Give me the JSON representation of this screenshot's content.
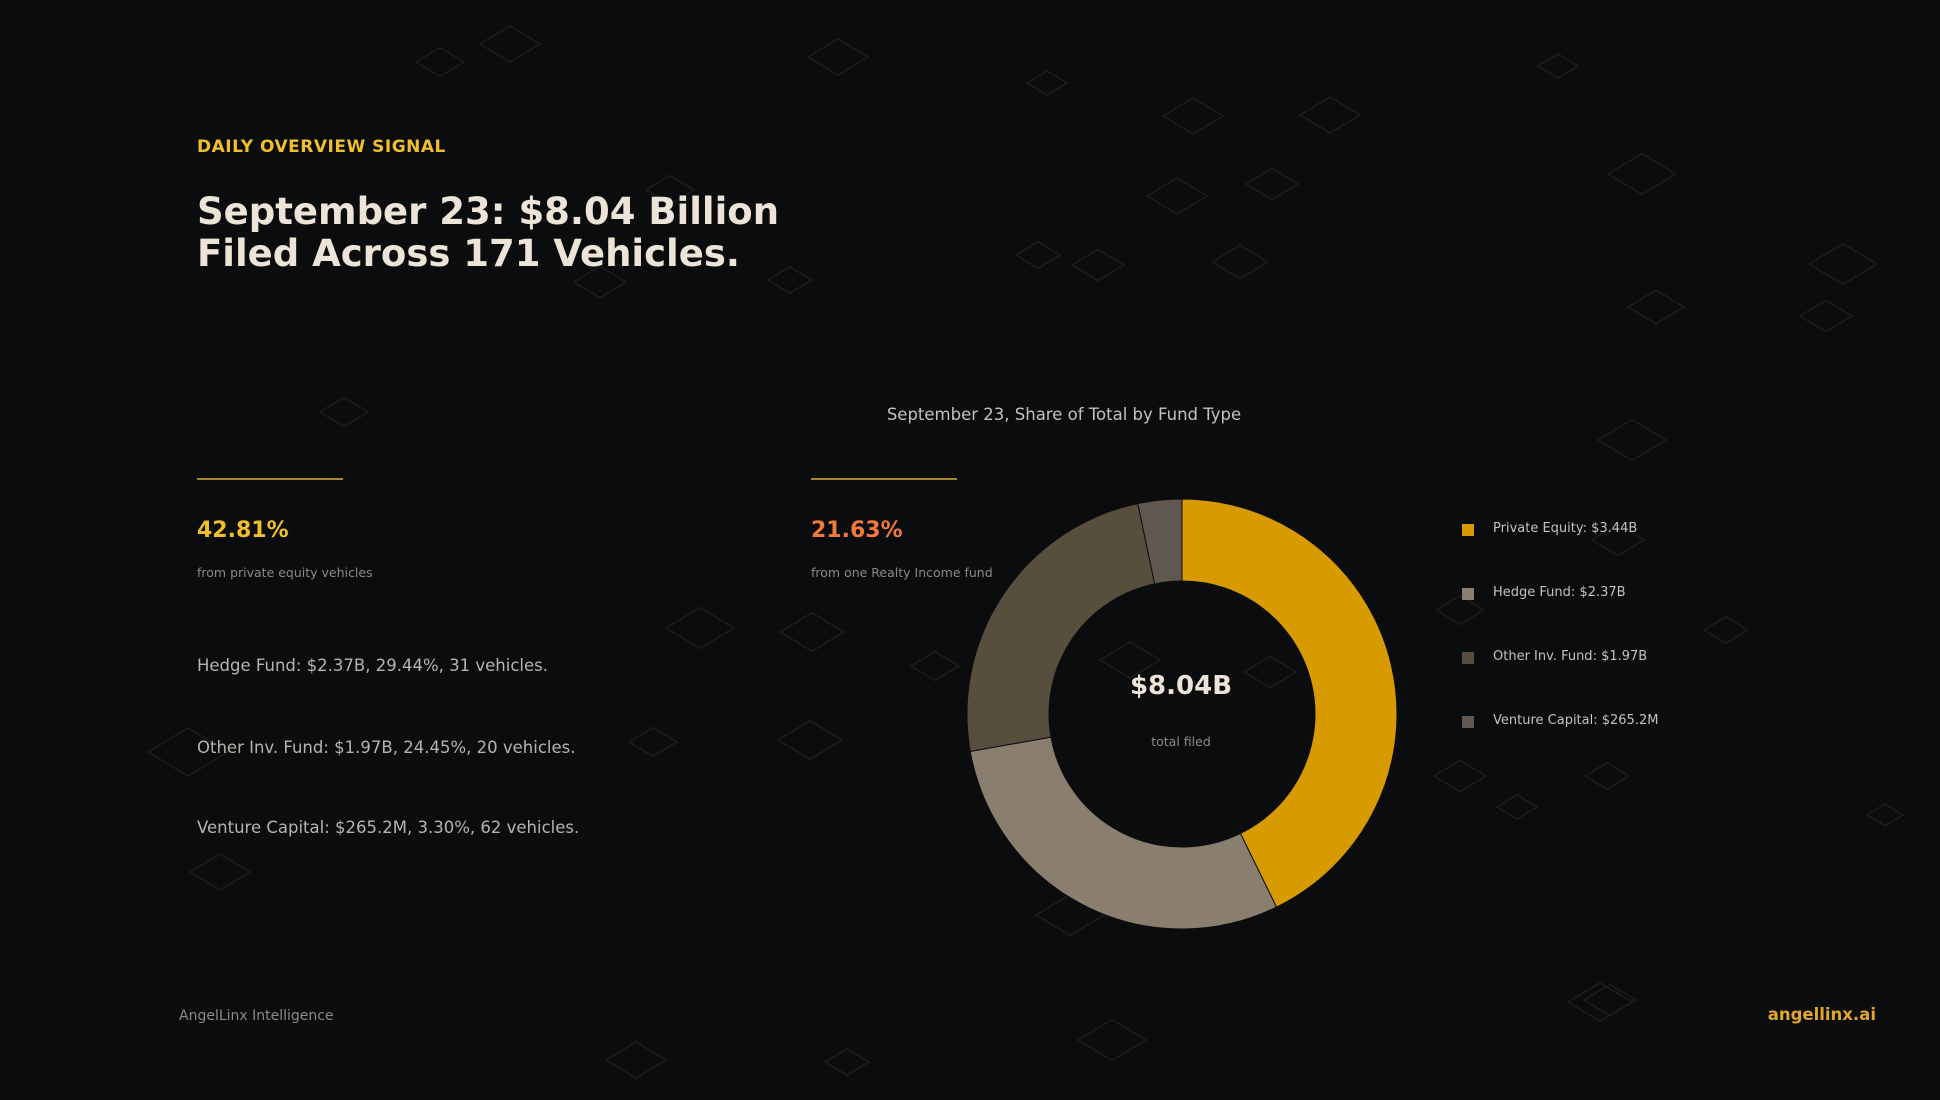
{
  "eyebrow": "DAILY OVERVIEW SIGNAL",
  "headline": {
    "line1": "September 23: $8.04 Billion",
    "line2": "Filed Across 171 Vehicles."
  },
  "stats": [
    {
      "value": "42.81%",
      "caption": "from private equity vehicles",
      "color": "#f0bf2a"
    },
    {
      "value": "21.63%",
      "caption": "from one Realty Income fund",
      "color": "#f07a3e"
    }
  ],
  "details": [
    "Hedge Fund: $2.37B, 29.44%, 31 vehicles.",
    "Other Inv. Fund: $1.97B, 24.45%, 20 vehicles.",
    "Venture Capital: $265.2M, 3.30%, 62 vehicles."
  ],
  "chart_data": {
    "type": "pie",
    "variant": "donut",
    "title": "September 23, Share of Total by Fund Type",
    "categories": [
      "Private Equity",
      "Hedge Fund",
      "Other Inv. Fund",
      "Venture Capital"
    ],
    "values": [
      3.44,
      2.37,
      1.97,
      0.2652
    ],
    "unit": "$B",
    "shares_percent": [
      42.81,
      29.44,
      24.45,
      3.3
    ],
    "colors": [
      "#d79b00",
      "#8a7f6e",
      "#584e3e",
      "#5f5750"
    ],
    "center_value": "$8.04B",
    "center_caption": "total filed",
    "legend": [
      "Private Equity: $3.44B",
      "Hedge Fund: $2.37B",
      "Other Inv. Fund: $1.97B",
      "Venture Capital: $265.2M"
    ],
    "legend_placement": "right"
  },
  "footer": {
    "left": "AngelLinx Intelligence",
    "right": "angellinx.ai"
  }
}
